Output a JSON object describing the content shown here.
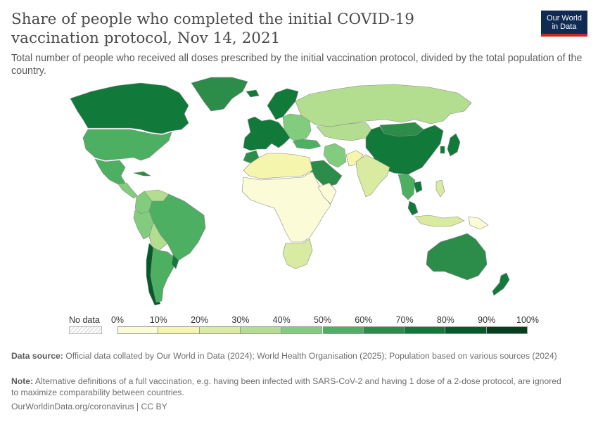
{
  "header": {
    "title": "Share of people who completed the initial COVID-19 vaccination protocol, Nov 14, 2021",
    "subtitle": "Total number of people who received all doses prescribed by the initial vaccination protocol, divided by the total population of the country.",
    "logo_line1": "Our World",
    "logo_line2": "in Data"
  },
  "legend": {
    "no_data_label": "No data",
    "ticks": [
      "0%",
      "10%",
      "20%",
      "30%",
      "40%",
      "50%",
      "60%",
      "70%",
      "80%",
      "90%",
      "100%"
    ],
    "bin_colors": [
      "#fbfbd8",
      "#f6f5ad",
      "#d8eba0",
      "#b3de90",
      "#82cc7e",
      "#4caf62",
      "#2c8c4a",
      "#117a3a",
      "#045a28",
      "#053f1d"
    ]
  },
  "map_data": {
    "regions": [
      {
        "name": "Canada",
        "value": 75
      },
      {
        "name": "United States",
        "value": 58
      },
      {
        "name": "Mexico",
        "value": 50
      },
      {
        "name": "Central America",
        "value": 40
      },
      {
        "name": "Cuba",
        "value": 62
      },
      {
        "name": "Greenland",
        "value": 65
      },
      {
        "name": "Colombia",
        "value": 42
      },
      {
        "name": "Venezuela",
        "value": 35
      },
      {
        "name": "Brazil",
        "value": 58
      },
      {
        "name": "Peru",
        "value": 47
      },
      {
        "name": "Bolivia",
        "value": 35
      },
      {
        "name": "Chile",
        "value": 82
      },
      {
        "name": "Argentina",
        "value": 58
      },
      {
        "name": "Uruguay",
        "value": 76
      },
      {
        "name": "Europe West",
        "value": 72
      },
      {
        "name": "Europe East",
        "value": 40
      },
      {
        "name": "Scandinavia",
        "value": 70
      },
      {
        "name": "Iceland",
        "value": 78
      },
      {
        "name": "Russia",
        "value": 36
      },
      {
        "name": "Kazakhstan",
        "value": 38
      },
      {
        "name": "Mongolia",
        "value": 65
      },
      {
        "name": "China",
        "value": 76
      },
      {
        "name": "Japan",
        "value": 75
      },
      {
        "name": "South Korea",
        "value": 78
      },
      {
        "name": "India",
        "value": 25
      },
      {
        "name": "Pakistan",
        "value": 15
      },
      {
        "name": "Iran",
        "value": 45
      },
      {
        "name": "Saudi Arabia",
        "value": 62
      },
      {
        "name": "Turkey",
        "value": 55
      },
      {
        "name": "Southeast Asia",
        "value": 50
      },
      {
        "name": "Cambodia",
        "value": 78
      },
      {
        "name": "Malaysia",
        "value": 76
      },
      {
        "name": "Indonesia",
        "value": 28
      },
      {
        "name": "Philippines",
        "value": 28
      },
      {
        "name": "Papua New Guinea",
        "value": 1
      },
      {
        "name": "Australia",
        "value": 68
      },
      {
        "name": "New Zealand",
        "value": 70
      },
      {
        "name": "North Africa",
        "value": 18
      },
      {
        "name": "Morocco",
        "value": 60
      },
      {
        "name": "Sub-Saharan Africa",
        "value": 4
      },
      {
        "name": "Southern Africa",
        "value": 22
      },
      {
        "name": "Eastern Africa",
        "value": 8
      }
    ]
  },
  "footer": {
    "source_label": "Data source:",
    "source_text": "Official data collated by Our World in Data (2024); World Health Organisation (2025); Population based on various sources (2024)",
    "note_label": "Note:",
    "note_text": "Alternative definitions of a full vaccination, e.g. having been infected with SARS-CoV-2 and having 1 dose of a 2-dose protocol, are ignored to maximize comparability between countries.",
    "url_text": "OurWorldinData.org/coronavirus | CC BY"
  }
}
